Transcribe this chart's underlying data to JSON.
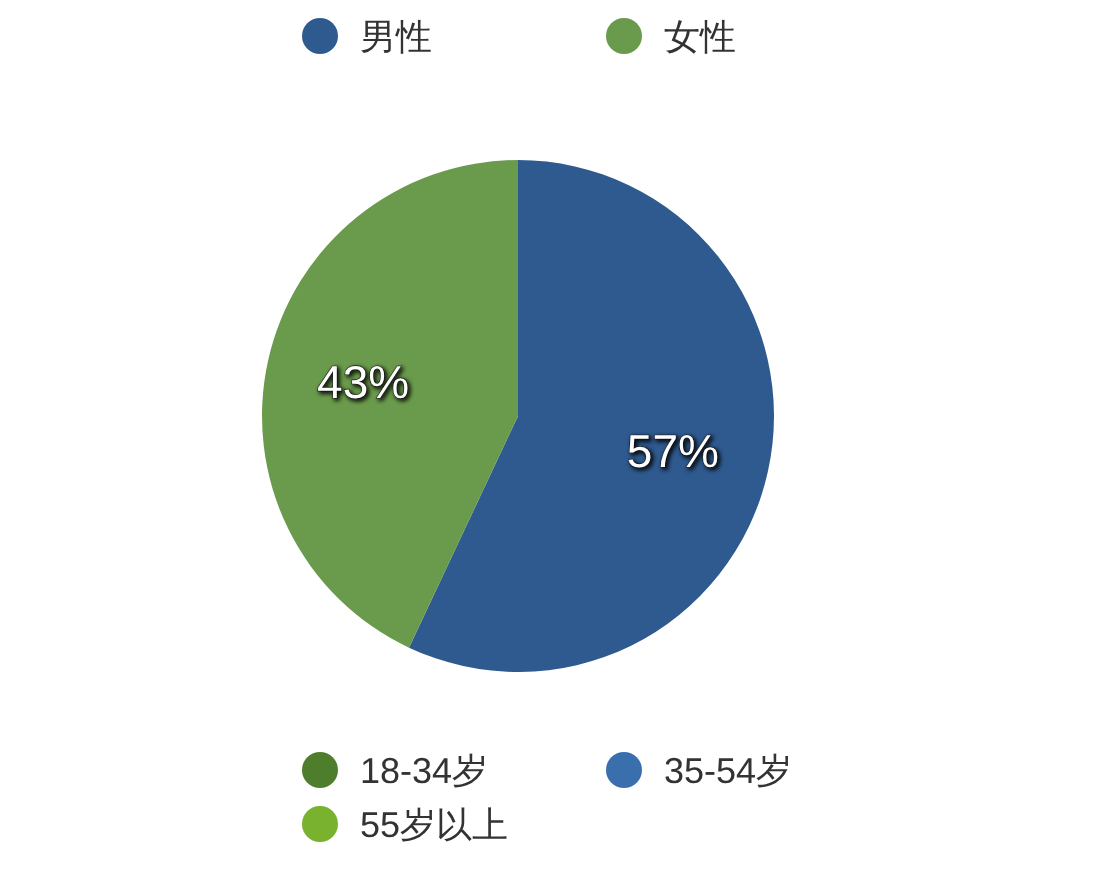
{
  "chart_data": [
    {
      "type": "pie",
      "categories": [
        "男性",
        "女性"
      ],
      "values": [
        57,
        43
      ],
      "colors": [
        "#2f5a8f",
        "#6a9b4c"
      ],
      "value_labels": [
        "57%",
        "43%"
      ],
      "legend": "top"
    },
    {
      "type": "other",
      "series": [
        {
          "name": "18-34岁",
          "color": "#4e7d2c"
        },
        {
          "name": "35-54岁",
          "color": "#3a6fae"
        },
        {
          "name": "55岁以上",
          "color": "#79b22f"
        }
      ],
      "legend": "bottom"
    }
  ]
}
